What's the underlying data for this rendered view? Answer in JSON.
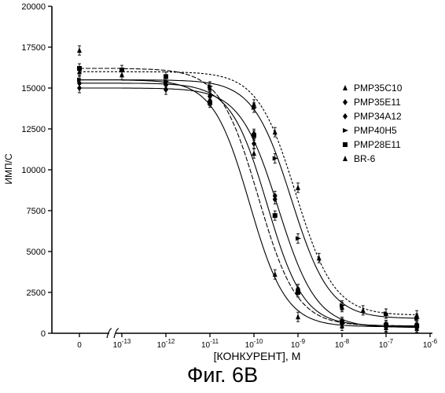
{
  "caption": "Фиг. 6B",
  "chart_data": {
    "type": "scatter",
    "title": "",
    "xlabel": "[КОНКУРЕНТ], M",
    "ylabel": "ИМП/С",
    "xscale": "log10 with broken axis (zero point at left)",
    "xlim": [
      1e-13,
      1e-06
    ],
    "ylim": [
      0,
      20000
    ],
    "yticks": [
      "0",
      "2500",
      "5000",
      "7500",
      "10000",
      "12500",
      "15000",
      "17500",
      "20000"
    ],
    "xticks": [
      {
        "base": "0",
        "exp": ""
      },
      {
        "base": "10",
        "exp": "-13"
      },
      {
        "base": "10",
        "exp": "-12"
      },
      {
        "base": "10",
        "exp": "-11"
      },
      {
        "base": "10",
        "exp": "-10"
      },
      {
        "base": "10",
        "exp": "-9"
      },
      {
        "base": "10",
        "exp": "-8"
      },
      {
        "base": "10",
        "exp": "-7"
      },
      {
        "base": "10",
        "exp": "-6"
      }
    ],
    "legend_position": "right",
    "series": [
      {
        "name": "PMP35C10",
        "marker": "triangle-up",
        "top": 15500,
        "bottom": 400,
        "log_ic50": -10.1,
        "hill": 1.05,
        "points": [
          [
            0,
            17300
          ],
          [
            1e-12,
            15300
          ],
          [
            1e-11,
            14600
          ],
          [
            1e-10,
            11000
          ],
          [
            3e-10,
            3600
          ],
          [
            1e-09,
            1000
          ],
          [
            1e-08,
            450
          ],
          [
            1e-07,
            350
          ],
          [
            5e-07,
            300
          ]
        ]
      },
      {
        "name": "PMP35E11",
        "marker": "diamond",
        "top": 15000,
        "bottom": 350,
        "log_ic50": -9.45,
        "hill": 1.0,
        "points": [
          [
            0,
            15000
          ],
          [
            1e-12,
            14900
          ],
          [
            1e-11,
            14500
          ],
          [
            1e-10,
            12200
          ],
          [
            3e-10,
            8200
          ],
          [
            1e-09,
            2700
          ],
          [
            1e-08,
            600
          ],
          [
            1e-07,
            400
          ],
          [
            5e-07,
            350
          ]
        ]
      },
      {
        "name": "PMP34A12",
        "marker": "diamond",
        "top": 15300,
        "bottom": 450,
        "log_ic50": -9.7,
        "hill": 1.05,
        "points": [
          [
            0,
            15300
          ],
          [
            1e-12,
            15200
          ],
          [
            1e-11,
            14200
          ],
          [
            1e-10,
            11600
          ],
          [
            3e-10,
            8400
          ],
          [
            1e-09,
            2700
          ],
          [
            1e-08,
            700
          ],
          [
            1e-07,
            500
          ],
          [
            5e-07,
            450
          ]
        ]
      },
      {
        "name": "PMP40H5",
        "marker": "triangle-right",
        "top": 15500,
        "bottom": 900,
        "log_ic50": -9.15,
        "hill": 1.0,
        "points": [
          [
            0,
            15500
          ],
          [
            1e-12,
            15400
          ],
          [
            1e-11,
            15100
          ],
          [
            1e-10,
            13800
          ],
          [
            3e-10,
            10700
          ],
          [
            1e-09,
            5800
          ],
          [
            1e-08,
            1700
          ],
          [
            1e-07,
            1200
          ],
          [
            5e-07,
            900
          ]
        ]
      },
      {
        "name": "PMP28E11",
        "marker": "square",
        "top": 16200,
        "bottom": 450,
        "log_ic50": -9.9,
        "hill": 1.0,
        "points": [
          [
            0,
            16200
          ],
          [
            1e-13,
            16100
          ],
          [
            1e-12,
            15700
          ],
          [
            1e-11,
            14100
          ],
          [
            1e-10,
            12100
          ],
          [
            3e-10,
            7200
          ],
          [
            1e-09,
            2500
          ],
          [
            1e-08,
            700
          ],
          [
            1e-07,
            500
          ],
          [
            5e-07,
            450
          ]
        ]
      },
      {
        "name": "BR-6",
        "marker": "triangle-up",
        "top": 16000,
        "bottom": 1100,
        "log_ic50": -9.05,
        "hill": 1.0,
        "points": [
          [
            0,
            16000
          ],
          [
            1e-13,
            15800
          ],
          [
            1e-12,
            15700
          ],
          [
            1e-11,
            15000
          ],
          [
            1e-10,
            14000
          ],
          [
            3e-10,
            12300
          ],
          [
            1e-09,
            8900
          ],
          [
            3e-09,
            4600
          ],
          [
            1e-08,
            1600
          ],
          [
            3e-08,
            1400
          ],
          [
            1e-07,
            1200
          ],
          [
            5e-07,
            1100
          ]
        ]
      }
    ]
  }
}
